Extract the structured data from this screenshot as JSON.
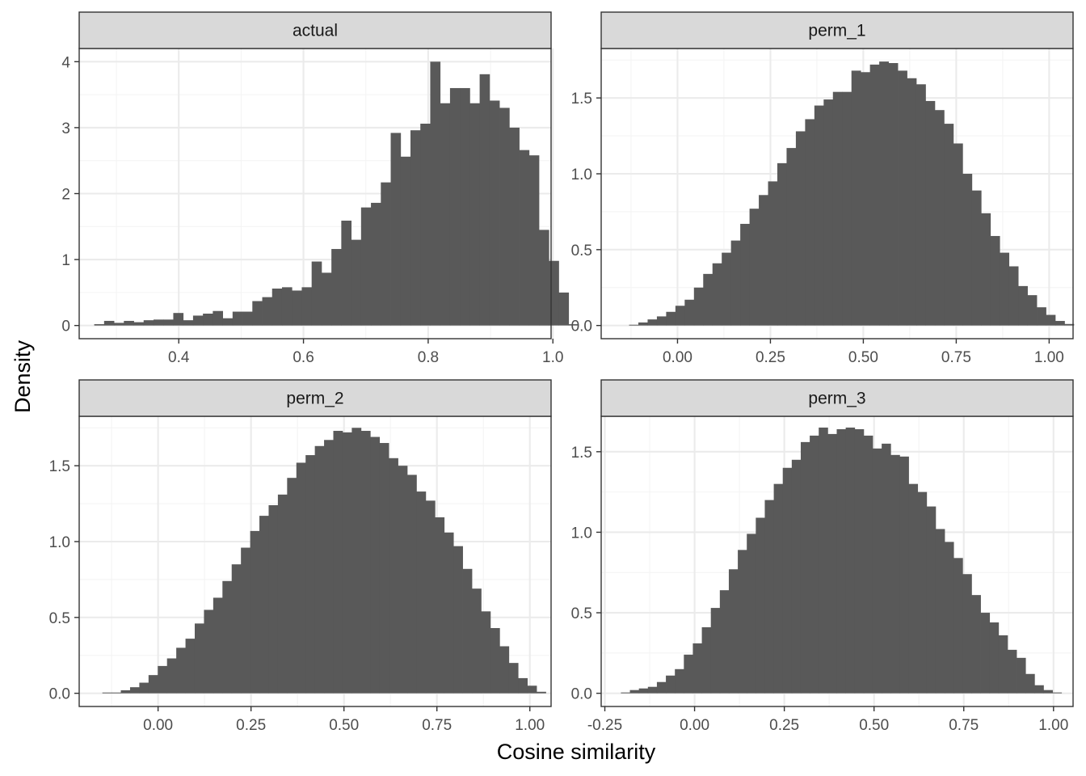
{
  "chart_data": {
    "type": "bar",
    "chart_kind": "faceted histogram",
    "xlabel": "Cosine similarity",
    "ylabel": "Density",
    "grid": true,
    "colors": {
      "bar": "#595959",
      "panel_border": "#333333",
      "strip_fill": "#d9d9d9",
      "grid_major": "#ebebeb",
      "grid_minor": "#f4f4f4"
    },
    "facets": [
      {
        "name": "actual",
        "xlim": [
          0.2403,
          0.9971
        ],
        "ylim": [
          -0.2,
          4.2
        ],
        "xticks": [
          0.4,
          0.6,
          0.8,
          1.0
        ],
        "xtick_labels": [
          "0.4",
          "0.6",
          "0.8",
          "1.0"
        ],
        "yticks": [
          0,
          1,
          2,
          3,
          4
        ],
        "ytick_labels": [
          "0",
          "1",
          "2",
          "3",
          "4"
        ],
        "bin_start": 0.2644,
        "bin_width": 0.01585,
        "values": [
          0.02,
          0.07,
          0.04,
          0.07,
          0.05,
          0.08,
          0.09,
          0.09,
          0.19,
          0.08,
          0.15,
          0.18,
          0.22,
          0.11,
          0.21,
          0.21,
          0.37,
          0.43,
          0.56,
          0.58,
          0.53,
          0.58,
          0.97,
          0.8,
          1.16,
          1.59,
          1.3,
          1.79,
          1.86,
          2.17,
          2.92,
          2.56,
          2.96,
          3.06,
          4.0,
          3.37,
          3.6,
          3.6,
          3.37,
          3.81,
          3.41,
          3.3,
          3.0,
          2.66,
          2.58,
          1.45,
          0.98,
          0.5,
          0.02
        ]
      },
      {
        "name": "perm_1",
        "xlim": [
          -0.2054,
          1.0644
        ],
        "ylim": [
          -0.087,
          1.826
        ],
        "xticks": [
          0.0,
          0.25,
          0.5,
          0.75,
          1.0
        ],
        "xtick_labels": [
          "0.00",
          "0.25",
          "0.50",
          "0.75",
          "1.00"
        ],
        "yticks": [
          0.0,
          0.5,
          1.0,
          1.5
        ],
        "ytick_labels": [
          "0.0",
          "0.5",
          "1.0",
          "1.5"
        ],
        "bin_start": -0.1303,
        "bin_width": 0.02493,
        "values": [
          0.005,
          0.02,
          0.04,
          0.06,
          0.09,
          0.13,
          0.17,
          0.25,
          0.34,
          0.41,
          0.48,
          0.56,
          0.67,
          0.77,
          0.86,
          0.95,
          1.07,
          1.17,
          1.28,
          1.36,
          1.45,
          1.49,
          1.54,
          1.54,
          1.68,
          1.67,
          1.72,
          1.74,
          1.73,
          1.68,
          1.63,
          1.59,
          1.48,
          1.42,
          1.33,
          1.2,
          1.0,
          0.89,
          0.74,
          0.59,
          0.48,
          0.39,
          0.26,
          0.2,
          0.12,
          0.07,
          0.03,
          0.01
        ]
      },
      {
        "name": "perm_2",
        "xlim": [
          -0.2122,
          1.0571
        ],
        "ylim": [
          -0.087,
          1.826
        ],
        "xticks": [
          0.0,
          0.25,
          0.5,
          0.75,
          1.0
        ],
        "xtick_labels": [
          "0.00",
          "0.25",
          "0.50",
          "0.75",
          "1.00"
        ],
        "yticks": [
          0.0,
          0.5,
          1.0,
          1.5
        ],
        "ytick_labels": [
          "0.0",
          "0.5",
          "1.0",
          "1.5"
        ],
        "bin_start": -0.1499,
        "bin_width": 0.02485,
        "values": [
          0.005,
          0.005,
          0.02,
          0.04,
          0.07,
          0.12,
          0.18,
          0.23,
          0.3,
          0.36,
          0.46,
          0.55,
          0.63,
          0.74,
          0.85,
          0.96,
          1.07,
          1.17,
          1.24,
          1.31,
          1.42,
          1.52,
          1.57,
          1.63,
          1.67,
          1.73,
          1.72,
          1.75,
          1.73,
          1.69,
          1.65,
          1.55,
          1.5,
          1.44,
          1.33,
          1.27,
          1.16,
          1.06,
          0.97,
          0.82,
          0.69,
          0.54,
          0.43,
          0.31,
          0.2,
          0.1,
          0.05,
          0.01
        ]
      },
      {
        "name": "perm_3",
        "xlim": [
          -0.2602,
          1.0545
        ],
        "ylim": [
          -0.082,
          1.72
        ],
        "xticks": [
          -0.25,
          0.0,
          0.25,
          0.5,
          0.75,
          1.0
        ],
        "xtick_labels": [
          "-0.25",
          "0.00",
          "0.25",
          "0.50",
          "0.75",
          "1.00"
        ],
        "yticks": [
          0.0,
          0.5,
          1.0,
          1.5
        ],
        "ytick_labels": [
          "0.0",
          "0.5",
          "1.0",
          "1.5"
        ],
        "bin_start": -0.2052,
        "bin_width": 0.02505,
        "values": [
          0.005,
          0.02,
          0.03,
          0.04,
          0.07,
          0.11,
          0.15,
          0.24,
          0.31,
          0.41,
          0.53,
          0.64,
          0.77,
          0.89,
          0.99,
          1.09,
          1.2,
          1.3,
          1.4,
          1.45,
          1.56,
          1.6,
          1.65,
          1.61,
          1.64,
          1.65,
          1.64,
          1.6,
          1.52,
          1.55,
          1.48,
          1.47,
          1.3,
          1.25,
          1.16,
          1.02,
          0.94,
          0.84,
          0.74,
          0.61,
          0.5,
          0.44,
          0.36,
          0.27,
          0.22,
          0.12,
          0.05,
          0.02,
          0.005
        ]
      }
    ]
  }
}
